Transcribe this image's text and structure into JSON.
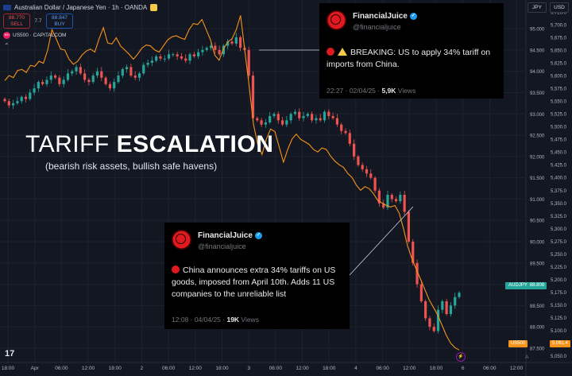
{
  "header": {
    "symbol_title": "Australian Dollar / Japanese Yen · 1h · OANDA",
    "sell_price": "88.770",
    "sell_label": "SELL",
    "spread": "7.7",
    "buy_price": "88.847",
    "buy_label": "BUY",
    "overlay_badge": "500",
    "overlay_symbol": "US500 · CAPITALCOM",
    "collapse_icon": "chevron-up-icon"
  },
  "axis_units": {
    "left": "JPY",
    "right": "USD"
  },
  "headline": {
    "title_light": "TARIFF ",
    "title_bold": "ESCALATION",
    "subtitle": "(bearish risk assets, bullish safe havens)"
  },
  "tweets": [
    {
      "name": "FinancialJuice",
      "handle": "@financialjuice",
      "text": "BREAKING: US to apply 34% tariff on imports from China.",
      "time": "22:27 · 02/04/25 · ",
      "views_count": "5,9K",
      "views_label": " Views"
    },
    {
      "name": "FinancialJuice",
      "handle": "@financialjuice",
      "text": "China announces extra 34% tariffs on US goods, imposed from April 10th. Adds 11 US companies to the unreliable list",
      "time": "12:08 · 04/04/25 · ",
      "views_count": "19K",
      "views_label": " Views"
    }
  ],
  "price_labels": {
    "audjpy_name": "AUDJPY",
    "audjpy_value": "88.808",
    "us500_name": "US500",
    "us500_value": "5,061.4"
  },
  "bottom": {
    "tv_logo": "17",
    "axis_toggle": "A"
  },
  "colors": {
    "up": "#26a69a",
    "down": "#ef5350",
    "us500_line": "#f7931a",
    "background": "#131722"
  },
  "chart_data": {
    "type": "candlestick",
    "title": "Australian Dollar / Japanese Yen · 1h · OANDA",
    "x_ticks": [
      "18:00",
      "Apr",
      "06:00",
      "12:00",
      "18:00",
      "2",
      "06:00",
      "12:00",
      "18:00",
      "3",
      "06:00",
      "12:00",
      "18:00",
      "4",
      "06:00",
      "12:00",
      "18:00",
      "6",
      "06:00",
      "12:00"
    ],
    "y_left": {
      "label": "JPY",
      "ticks": [
        "95.000",
        "94.500",
        "94.000",
        "93.500",
        "93.000",
        "92.500",
        "92.000",
        "91.500",
        "91.000",
        "90.500",
        "90.000",
        "89.500",
        "89.000",
        "88.500",
        "88.000",
        "87.500"
      ],
      "ylim": [
        87.2,
        95.6
      ]
    },
    "y_right": {
      "label": "USD",
      "ticks": [
        "5,725.0",
        "5,700.0",
        "5,675.0",
        "5,650.0",
        "5,625.0",
        "5,600.0",
        "5,575.0",
        "5,550.0",
        "5,525.0",
        "5,500.0",
        "5,475.0",
        "5,450.0",
        "5,425.0",
        "5,400.0",
        "5,375.0",
        "5,350.0",
        "5,325.0",
        "5,300.0",
        "5,275.0",
        "5,250.0",
        "5,225.0",
        "5,200.0",
        "5,175.0",
        "5,150.0",
        "5,125.0",
        "5,100.0",
        "5,075.0",
        "5,050.0"
      ],
      "ylim": [
        5040,
        5742
      ]
    },
    "candle_closes": [
      93.3,
      93.2,
      93.25,
      93.3,
      93.4,
      93.35,
      93.5,
      93.6,
      93.75,
      93.7,
      93.8,
      93.9,
      93.85,
      93.7,
      93.8,
      93.95,
      94.0,
      94.1,
      93.95,
      93.8,
      93.75,
      93.9,
      94.0,
      93.85,
      93.7,
      93.6,
      93.75,
      93.9,
      94.05,
      94.1,
      93.9,
      93.85,
      93.95,
      94.15,
      94.2,
      94.25,
      94.35,
      94.3,
      94.3,
      94.4,
      94.4,
      94.35,
      94.3,
      94.25,
      94.4,
      94.35,
      94.45,
      94.5,
      94.55,
      94.6,
      94.5,
      94.4,
      94.6,
      94.7,
      94.65,
      94.8,
      94.55,
      94.5,
      93.9,
      92.9,
      92.85,
      92.75,
      92.8,
      92.95,
      93.0,
      92.85,
      92.75,
      92.85,
      93.0,
      93.05,
      92.9,
      92.95,
      93.0,
      92.85,
      92.9,
      92.85,
      93.05,
      92.95,
      92.9,
      92.75,
      92.6,
      92.55,
      92.3,
      92.0,
      91.8,
      91.7,
      91.6,
      91.5,
      91.2,
      90.9,
      90.8,
      91.1,
      91.0,
      90.95,
      91.1,
      90.7,
      90.0,
      89.5,
      89.0,
      88.6,
      88.2,
      88.0,
      87.9,
      88.4,
      88.6,
      88.3,
      88.5,
      88.7,
      88.8
    ],
    "us500_series": [
      5590,
      5600,
      5596,
      5610,
      5612,
      5606,
      5620,
      5618,
      5628,
      5624,
      5650,
      5690,
      5672,
      5652,
      5650,
      5632,
      5622,
      5628,
      5640,
      5648,
      5652,
      5646,
      5672,
      5694,
      5664,
      5662,
      5674,
      5658,
      5650,
      5642,
      5632,
      5642,
      5654,
      5660,
      5658,
      5650,
      5646,
      5658,
      5670,
      5676,
      5678,
      5674,
      5671,
      5690,
      5702,
      5700,
      5710,
      5690,
      5670,
      5640,
      5630,
      5652,
      5666,
      5672,
      5690,
      5718,
      5648,
      5580,
      5505,
      5465,
      5445,
      5475,
      5495,
      5490,
      5460,
      5430,
      5455,
      5475,
      5485,
      5475,
      5470,
      5465,
      5455,
      5450,
      5458,
      5455,
      5442,
      5432,
      5425,
      5420,
      5408,
      5400,
      5385,
      5375,
      5382,
      5378,
      5368,
      5355,
      5350,
      5345,
      5342,
      5345,
      5330,
      5300,
      5265,
      5240,
      5220,
      5200,
      5180,
      5160,
      5145,
      5130,
      5110,
      5090,
      5075,
      5066,
      5061.4
    ],
    "last_price_audjpy": 88.808,
    "last_price_us500": 5061.4
  }
}
